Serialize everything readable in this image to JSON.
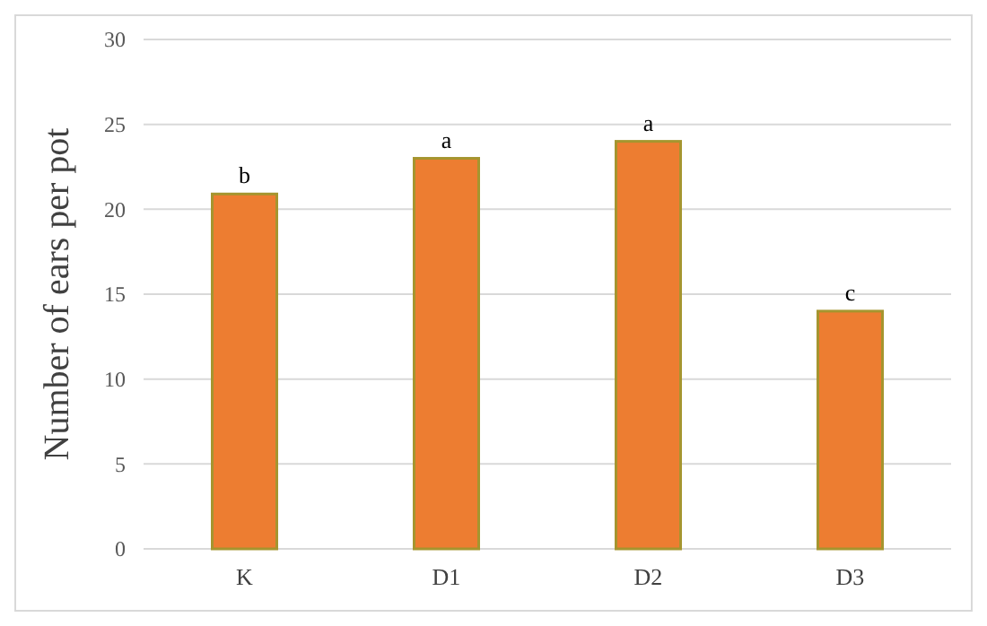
{
  "chart_data": {
    "type": "bar",
    "ylabel": "Number of ears per pot",
    "categories": [
      "K",
      "D1",
      "D2",
      "D3"
    ],
    "values": [
      20.9,
      23,
      24,
      14
    ],
    "color": "#ed7d31",
    "ylim": [
      0,
      30
    ],
    "yticks": [
      0,
      5,
      10,
      15,
      20,
      25,
      30
    ],
    "grid": "y",
    "annotations": [
      {
        "text": "b",
        "x": "K",
        "y": 20.9
      },
      {
        "text": "a",
        "x": "D1",
        "y": 23
      },
      {
        "text": "a",
        "x": "D2",
        "y": 24
      },
      {
        "text": "c",
        "x": "D3",
        "y": 14
      }
    ]
  }
}
